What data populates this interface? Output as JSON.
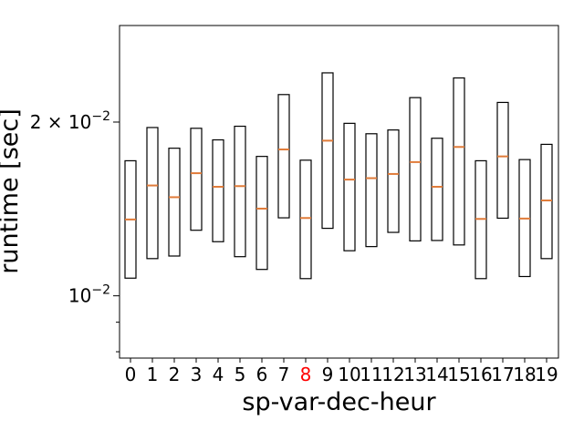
{
  "chart_data": {
    "type": "box",
    "xlabel": "sp-var-dec-heur",
    "ylabel": "runtime [sec]",
    "yscale": "log",
    "ylim": [
      0.0078,
      0.0294
    ],
    "y_major_ticks": [
      {
        "value": 0.01,
        "base": "10",
        "exp": "−2",
        "coef": ""
      },
      {
        "value": 0.02,
        "base": "10",
        "exp": "−2",
        "coef": "2 × "
      }
    ],
    "y_minor_ticks": [
      0.008,
      0.009
    ],
    "highlight_color": "#ff0000",
    "box_color": "#000000",
    "median_color": "#e07b39",
    "boxes": [
      {
        "label": "0",
        "q1": 0.01073,
        "median": 0.01356,
        "q3": 0.01714,
        "highlight": false
      },
      {
        "label": "1",
        "q1": 0.0116,
        "median": 0.01553,
        "q3": 0.01957,
        "highlight": false
      },
      {
        "label": "2",
        "q1": 0.01172,
        "median": 0.01482,
        "q3": 0.01802,
        "highlight": false
      },
      {
        "label": "3",
        "q1": 0.01299,
        "median": 0.01631,
        "q3": 0.01951,
        "highlight": false
      },
      {
        "label": "4",
        "q1": 0.01241,
        "median": 0.01545,
        "q3": 0.01863,
        "highlight": false
      },
      {
        "label": "5",
        "q1": 0.01169,
        "median": 0.01549,
        "q3": 0.01967,
        "highlight": false
      },
      {
        "label": "6",
        "q1": 0.01111,
        "median": 0.01416,
        "q3": 0.01744,
        "highlight": false
      },
      {
        "label": "7",
        "q1": 0.01365,
        "median": 0.01793,
        "q3": 0.02232,
        "highlight": false
      },
      {
        "label": "8",
        "q1": 0.01071,
        "median": 0.01364,
        "q3": 0.01718,
        "highlight": true
      },
      {
        "label": "9",
        "q1": 0.01309,
        "median": 0.01857,
        "q3": 0.02434,
        "highlight": false
      },
      {
        "label": "10",
        "q1": 0.01197,
        "median": 0.0159,
        "q3": 0.0199,
        "highlight": false
      },
      {
        "label": "11",
        "q1": 0.01217,
        "median": 0.01599,
        "q3": 0.01909,
        "highlight": false
      },
      {
        "label": "12",
        "q1": 0.01288,
        "median": 0.01626,
        "q3": 0.01938,
        "highlight": false
      },
      {
        "label": "13",
        "q1": 0.01245,
        "median": 0.01705,
        "q3": 0.02205,
        "highlight": false
      },
      {
        "label": "14",
        "q1": 0.01247,
        "median": 0.01545,
        "q3": 0.01875,
        "highlight": false
      },
      {
        "label": "15",
        "q1": 0.01225,
        "median": 0.01811,
        "q3": 0.02385,
        "highlight": false
      },
      {
        "label": "16",
        "q1": 0.01071,
        "median": 0.01359,
        "q3": 0.01714,
        "highlight": false
      },
      {
        "label": "17",
        "q1": 0.01363,
        "median": 0.01744,
        "q3": 0.02163,
        "highlight": false
      },
      {
        "label": "18",
        "q1": 0.0108,
        "median": 0.01361,
        "q3": 0.01722,
        "highlight": false
      },
      {
        "label": "19",
        "q1": 0.0116,
        "median": 0.01463,
        "q3": 0.0183,
        "highlight": false
      }
    ]
  }
}
